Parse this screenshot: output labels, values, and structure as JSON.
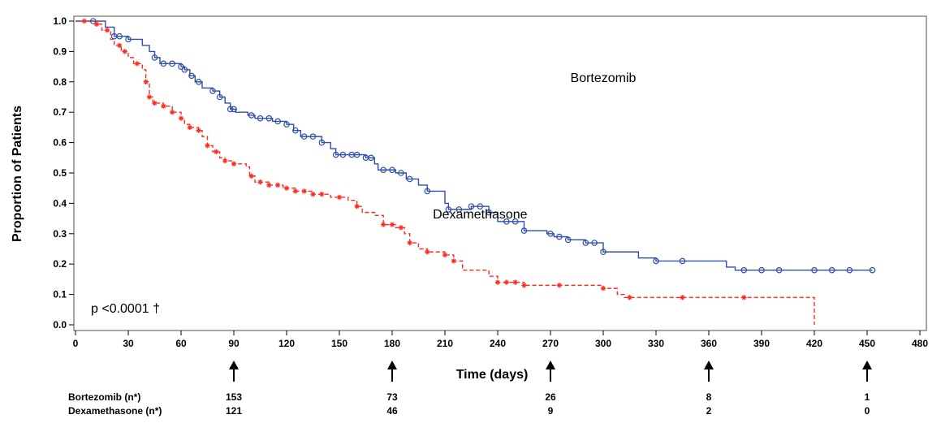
{
  "chart_data": {
    "type": "line",
    "title": "",
    "xlabel": "Time (days)",
    "ylabel": "Proportion of Patients",
    "xlim": [
      0,
      480
    ],
    "ylim": [
      0,
      1.0
    ],
    "x_ticks": [
      "0",
      "30",
      "60",
      "90",
      "120",
      "150",
      "180",
      "210",
      "240",
      "270",
      "300",
      "330",
      "360",
      "390",
      "420",
      "450",
      "480"
    ],
    "y_ticks": [
      "0.0",
      "0.1",
      "0.2",
      "0.3",
      "0.4",
      "0.5",
      "0.6",
      "0.7",
      "0.8",
      "0.9",
      "1.0"
    ],
    "grid": false,
    "legend": "none",
    "annotation": "p <0.0001 †",
    "series": [
      {
        "name": "Bortezomib",
        "color": "#2f4fa8",
        "marker": "circle",
        "line_style": "solid",
        "points": [
          [
            0,
            1.0
          ],
          [
            10,
            1.0
          ],
          [
            17,
            0.98
          ],
          [
            22,
            0.95
          ],
          [
            30,
            0.94
          ],
          [
            38,
            0.92
          ],
          [
            42,
            0.9
          ],
          [
            45,
            0.88
          ],
          [
            48,
            0.86
          ],
          [
            60,
            0.85
          ],
          [
            62,
            0.84
          ],
          [
            65,
            0.82
          ],
          [
            68,
            0.8
          ],
          [
            72,
            0.78
          ],
          [
            78,
            0.77
          ],
          [
            82,
            0.75
          ],
          [
            85,
            0.73
          ],
          [
            88,
            0.71
          ],
          [
            91,
            0.7
          ],
          [
            98,
            0.69
          ],
          [
            102,
            0.68
          ],
          [
            112,
            0.67
          ],
          [
            120,
            0.66
          ],
          [
            124,
            0.64
          ],
          [
            128,
            0.62
          ],
          [
            140,
            0.6
          ],
          [
            145,
            0.58
          ],
          [
            148,
            0.56
          ],
          [
            165,
            0.55
          ],
          [
            170,
            0.53
          ],
          [
            172,
            0.51
          ],
          [
            182,
            0.5
          ],
          [
            188,
            0.48
          ],
          [
            195,
            0.46
          ],
          [
            200,
            0.44
          ],
          [
            210,
            0.4
          ],
          [
            212,
            0.38
          ],
          [
            225,
            0.39
          ],
          [
            235,
            0.37
          ],
          [
            240,
            0.34
          ],
          [
            255,
            0.31
          ],
          [
            268,
            0.3
          ],
          [
            272,
            0.29
          ],
          [
            280,
            0.28
          ],
          [
            290,
            0.27
          ],
          [
            300,
            0.24
          ],
          [
            320,
            0.22
          ],
          [
            330,
            0.21
          ],
          [
            345,
            0.21
          ],
          [
            370,
            0.19
          ],
          [
            375,
            0.18
          ],
          [
            453,
            0.18
          ]
        ],
        "censored_x": [
          10,
          22,
          25,
          30,
          45,
          50,
          55,
          60,
          62,
          66,
          70,
          78,
          82,
          88,
          90,
          100,
          105,
          110,
          115,
          120,
          125,
          130,
          135,
          140,
          148,
          152,
          157,
          160,
          165,
          168,
          175,
          180,
          185,
          190,
          200,
          212,
          218,
          225,
          230,
          235,
          245,
          250,
          255,
          270,
          275,
          280,
          290,
          295,
          300,
          330,
          345,
          380,
          390,
          400,
          420,
          430,
          440,
          453
        ]
      },
      {
        "name": "Dexamethasone",
        "color": "#ff2a1f",
        "marker": "star",
        "line_style": "dashed",
        "points": [
          [
            0,
            1.0
          ],
          [
            12,
            0.99
          ],
          [
            15,
            0.97
          ],
          [
            20,
            0.94
          ],
          [
            22,
            0.92
          ],
          [
            26,
            0.9
          ],
          [
            30,
            0.88
          ],
          [
            33,
            0.86
          ],
          [
            38,
            0.84
          ],
          [
            40,
            0.8
          ],
          [
            42,
            0.75
          ],
          [
            44,
            0.73
          ],
          [
            50,
            0.72
          ],
          [
            55,
            0.7
          ],
          [
            60,
            0.68
          ],
          [
            62,
            0.66
          ],
          [
            65,
            0.65
          ],
          [
            70,
            0.64
          ],
          [
            72,
            0.62
          ],
          [
            75,
            0.59
          ],
          [
            78,
            0.57
          ],
          [
            82,
            0.55
          ],
          [
            85,
            0.54
          ],
          [
            90,
            0.53
          ],
          [
            97,
            0.52
          ],
          [
            99,
            0.49
          ],
          [
            102,
            0.47
          ],
          [
            110,
            0.46
          ],
          [
            118,
            0.45
          ],
          [
            125,
            0.44
          ],
          [
            135,
            0.43
          ],
          [
            145,
            0.42
          ],
          [
            155,
            0.41
          ],
          [
            160,
            0.39
          ],
          [
            163,
            0.37
          ],
          [
            170,
            0.36
          ],
          [
            175,
            0.33
          ],
          [
            182,
            0.32
          ],
          [
            187,
            0.3
          ],
          [
            190,
            0.27
          ],
          [
            195,
            0.25
          ],
          [
            200,
            0.24
          ],
          [
            210,
            0.23
          ],
          [
            215,
            0.21
          ],
          [
            220,
            0.18
          ],
          [
            235,
            0.16
          ],
          [
            240,
            0.14
          ],
          [
            255,
            0.13
          ],
          [
            300,
            0.12
          ],
          [
            308,
            0.1
          ],
          [
            312,
            0.09
          ],
          [
            420,
            0.09
          ],
          [
            420,
            0.0
          ]
        ],
        "censored_x": [
          5,
          12,
          18,
          25,
          28,
          35,
          40,
          42,
          45,
          50,
          55,
          60,
          65,
          70,
          75,
          80,
          85,
          90,
          100,
          105,
          110,
          115,
          120,
          125,
          130,
          135,
          140,
          150,
          160,
          175,
          180,
          185,
          190,
          200,
          210,
          215,
          240,
          245,
          250,
          255,
          275,
          300,
          315,
          345,
          380
        ]
      }
    ],
    "series_labels": [
      {
        "text": "Bortezomib",
        "x": 300,
        "y": 0.8
      },
      {
        "text": "Dexamethasone",
        "x": 230,
        "y": 0.35
      }
    ],
    "at_risk": {
      "rows": [
        {
          "label": "Bortezomib (n*)",
          "values": [
            "153",
            "73",
            "26",
            "8",
            "1"
          ]
        },
        {
          "label": "Dexamethasone (n*)",
          "values": [
            "121",
            "46",
            "9",
            "2",
            "0"
          ]
        }
      ],
      "x_values": [
        90,
        180,
        270,
        360,
        450
      ]
    }
  }
}
